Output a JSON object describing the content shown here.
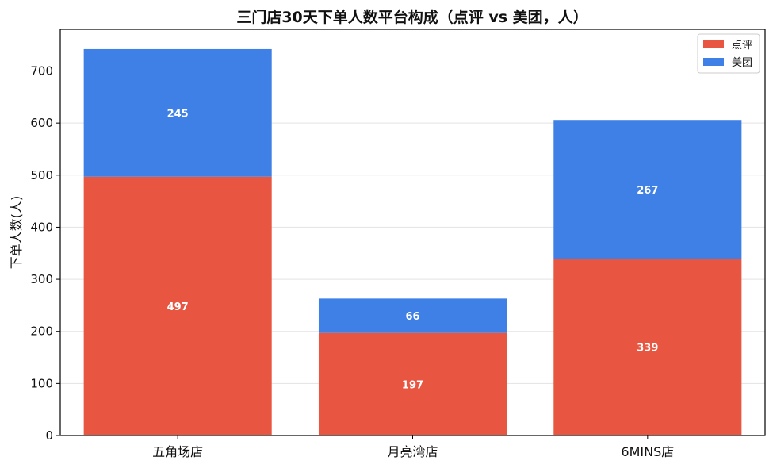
{
  "chart_data": {
    "type": "bar",
    "stacked": true,
    "title": "三门店30天下单人数平台构成（点评 vs 美团，人）",
    "xlabel": "",
    "ylabel": "下单人数(人)",
    "categories": [
      "五角场店",
      "月亮湾店",
      "6MINS店"
    ],
    "series": [
      {
        "name": "点评",
        "color": "#E85540",
        "values": [
          497,
          197,
          339
        ]
      },
      {
        "name": "美团",
        "color": "#3F80E6",
        "values": [
          245,
          66,
          267
        ]
      }
    ],
    "ylim": [
      0,
      780
    ],
    "yticks": [
      0,
      100,
      200,
      300,
      400,
      500,
      600,
      700
    ],
    "grid": "horizontal",
    "legend_position": "top-right"
  }
}
